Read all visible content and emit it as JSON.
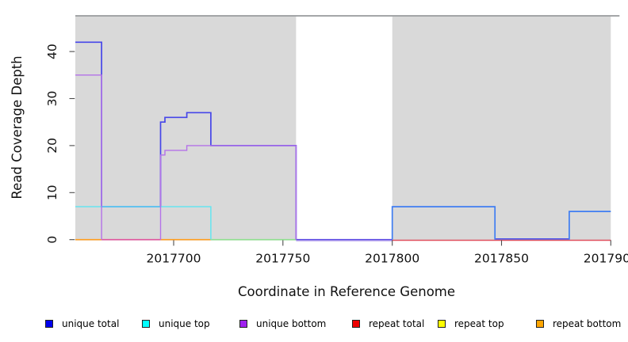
{
  "chart_data": {
    "type": "line",
    "subtype": "step-coverage-plot",
    "title": "",
    "xlabel": "Coordinate in Reference Genome",
    "ylabel": "Read Coverage Depth",
    "xlim": [
      2017655,
      2017904
    ],
    "ylim": [
      0,
      47.6
    ],
    "grid": false,
    "plot_bg": "#d9d9d9",
    "x_ticks": [
      "2017700",
      "2017750",
      "2017800",
      "2017850",
      "2017900"
    ],
    "x_tick_values": [
      2017700,
      2017750,
      2017800,
      2017850,
      2017900
    ],
    "y_ticks": [
      0,
      10,
      20,
      30,
      40
    ],
    "coverage_blocks": [
      [
        2017655,
        2017756
      ],
      [
        2017800,
        2017900
      ]
    ],
    "uncovered_gap": [
      2017756,
      2017800
    ],
    "series": [
      {
        "name": "unique total",
        "legend_color": "#0000ee",
        "stroke": "#4646e9",
        "width": 1.7,
        "paths": [
          {
            "points": [
              [
                2017655,
                42
              ],
              [
                2017667,
                42
              ],
              [
                2017667,
                7
              ],
              [
                2017694,
                7
              ],
              [
                2017694,
                25
              ],
              [
                2017696,
                25
              ],
              [
                2017696,
                26
              ],
              [
                2017706,
                26
              ],
              [
                2017706,
                27
              ],
              [
                2017717,
                27
              ],
              [
                2017717,
                20
              ],
              [
                2017756,
                20
              ],
              [
                2017756,
                0
              ]
            ],
            "stroke": "#4646e9"
          },
          {
            "points": [
              [
                2017800,
                0
              ],
              [
                2017800,
                7
              ],
              [
                2017847,
                7
              ],
              [
                2017847,
                0
              ]
            ],
            "stroke": "#3f7df2"
          },
          {
            "points": [
              [
                2017881,
                0
              ],
              [
                2017881,
                6
              ],
              [
                2017900,
                6
              ]
            ],
            "stroke": "#3f7df2"
          }
        ]
      },
      {
        "name": "unique top",
        "legend_color": "#00ffff",
        "stroke": "#5ce6f2",
        "width": 1.4,
        "paths": [
          {
            "points": [
              [
                2017655,
                7
              ],
              [
                2017717,
                7
              ],
              [
                2017717,
                0
              ]
            ]
          }
        ]
      },
      {
        "name": "unique bottom",
        "legend_color": "#a020f0",
        "stroke": "#b472e8",
        "width": 1.4,
        "paths": [
          {
            "points": [
              [
                2017655,
                35
              ],
              [
                2017667,
                35
              ],
              [
                2017667,
                0
              ]
            ]
          },
          {
            "points": [
              [
                2017694,
                0
              ],
              [
                2017694,
                18
              ],
              [
                2017696,
                18
              ],
              [
                2017696,
                19
              ],
              [
                2017706,
                19
              ],
              [
                2017706,
                20
              ],
              [
                2017756,
                20
              ],
              [
                2017756,
                0
              ]
            ]
          }
        ]
      },
      {
        "name": "repeat total",
        "legend_color": "#ee0000",
        "stroke": "#e0505e",
        "width": 1.5,
        "paths": [],
        "note": "value 0 across plot; visible as red zero-line 2017800-2017900"
      },
      {
        "name": "repeat top",
        "legend_color": "#ffff00",
        "stroke": "#f0e642",
        "width": 1.5,
        "paths": [],
        "note": "value 0 across plot"
      },
      {
        "name": "repeat bottom",
        "legend_color": "#ffa500",
        "stroke": "#ff9d1e",
        "width": 1.5,
        "paths": [],
        "note": "value 0 across plot; visible as orange zero-line segments"
      }
    ],
    "zero_line_segments": [
      {
        "x": [
          2017655,
          2017667
        ],
        "color": "#ff9d1e",
        "dy": 0,
        "track": "repeat bottom"
      },
      {
        "x": [
          2017667,
          2017694
        ],
        "color": "#e0569d",
        "dy": 0,
        "track": "unique bottom + repeat total"
      },
      {
        "x": [
          2017694,
          2017717
        ],
        "color": "#ff9d1e",
        "dy": 0,
        "track": "repeat bottom"
      },
      {
        "x": [
          2017717,
          2017756
        ],
        "color": "#90e090",
        "dy": 0,
        "track": "unique top + repeat top"
      },
      {
        "x": [
          2017756,
          2017800
        ],
        "color": "#cfc0f2",
        "dy": 1.6,
        "track": "unique bottom halo"
      },
      {
        "x": [
          2017756,
          2017800
        ],
        "color": "#5b49e2",
        "dy": 0,
        "track": "unique total + unique bottom"
      },
      {
        "x": [
          2017800,
          2017900
        ],
        "color": "#e0505e",
        "dy": 0.8,
        "track": "repeat total"
      },
      {
        "x": [
          2017847,
          2017881
        ],
        "color": "#4a52e8",
        "dy": -0.9,
        "track": "unique total"
      }
    ]
  },
  "legend": {
    "items": [
      {
        "label": "unique total",
        "fill": "#0000ee"
      },
      {
        "label": "unique top",
        "fill": "#00ffff"
      },
      {
        "label": "unique bottom",
        "fill": "#a020f0"
      },
      {
        "label": "repeat total",
        "fill": "#ee0000"
      },
      {
        "label": "repeat top",
        "fill": "#ffff00"
      },
      {
        "label": "repeat bottom",
        "fill": "#ffa500"
      }
    ]
  }
}
